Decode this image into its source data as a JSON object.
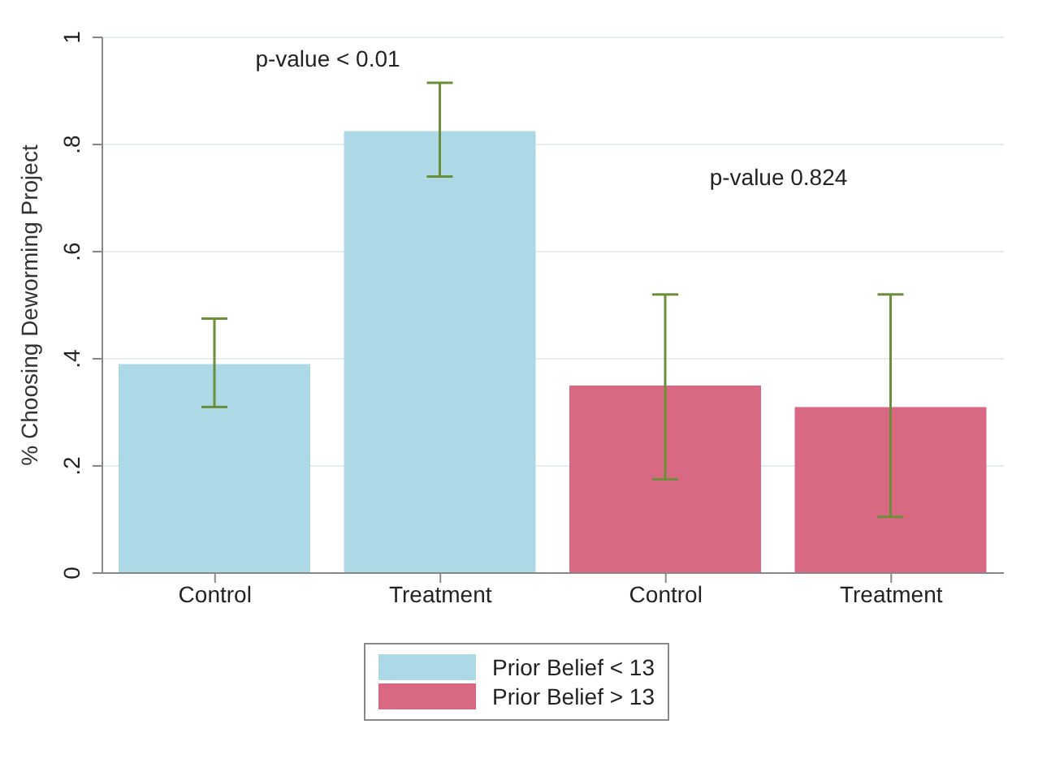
{
  "chart_data": {
    "type": "bar",
    "ylabel": "% Choosing Deworming Project",
    "categories": [
      "Control",
      "Treatment",
      "Control",
      "Treatment"
    ],
    "series": [
      {
        "name": "Prior Belief < 13",
        "color": "#add8e6",
        "values": [
          0.39,
          0.825,
          null,
          null
        ],
        "errors": [
          [
            0.31,
            0.475
          ],
          [
            0.74,
            0.915
          ],
          null,
          null
        ]
      },
      {
        "name": "Prior Belief > 13",
        "color": "#d96882",
        "values": [
          null,
          null,
          0.35,
          0.31
        ],
        "errors": [
          null,
          null,
          [
            0.175,
            0.52
          ],
          [
            0.105,
            0.52
          ]
        ]
      }
    ],
    "ylim": [
      0,
      1
    ],
    "yticks": [
      {
        "value": 0,
        "label": "0"
      },
      {
        "value": 0.2,
        "label": ".2"
      },
      {
        "value": 0.4,
        "label": ".4"
      },
      {
        "value": 0.6,
        "label": ".6"
      },
      {
        "value": 0.8,
        "label": ".8"
      },
      {
        "value": 1,
        "label": "1"
      }
    ],
    "grid": "y",
    "legend": "bottom",
    "annotations": [
      "p-value < 0.01",
      "p-value 0.824"
    ]
  }
}
